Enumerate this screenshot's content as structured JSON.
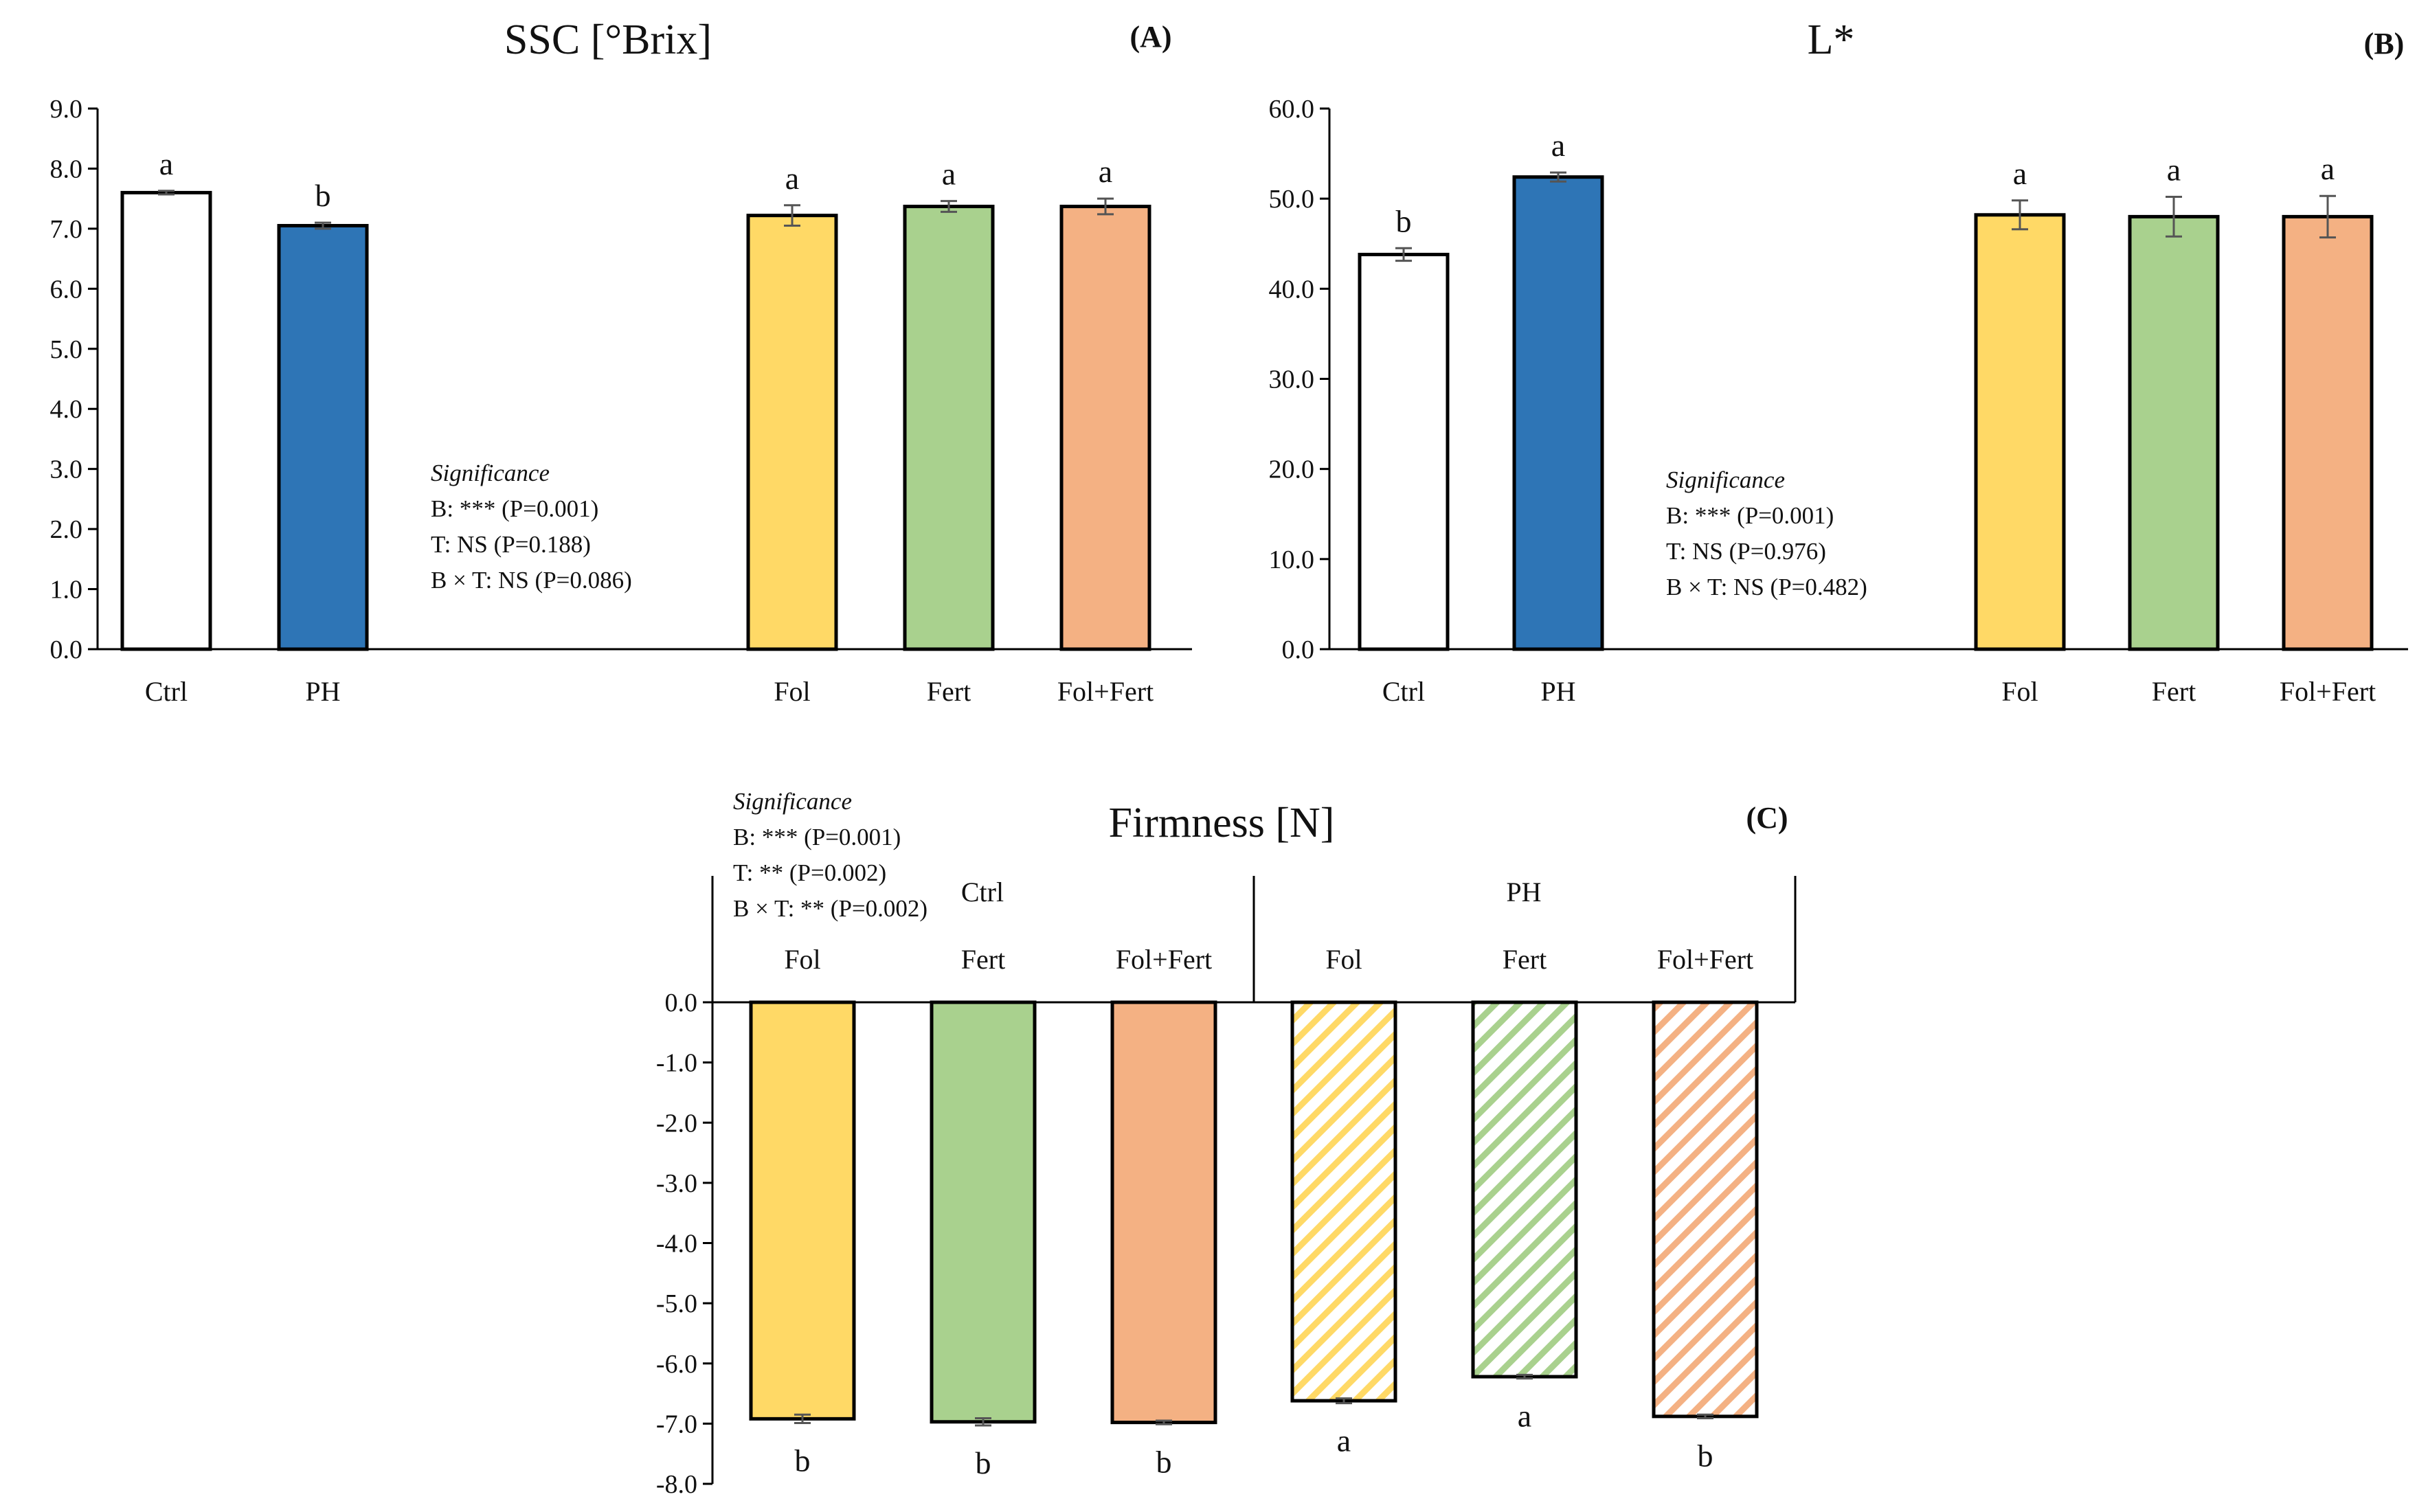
{
  "colors": {
    "ctrl": "#ffffff",
    "ph": "#2e75b6",
    "fol": "#ffd966",
    "fert": "#a9d18e",
    "folfert": "#f4b183",
    "outline": "#000000",
    "errorbar": "#555555"
  },
  "chart_data": [
    {
      "id": "A",
      "type": "bar",
      "title": "SSC [°Brix]",
      "panel_label": "(A)",
      "ylim": [
        0,
        9
      ],
      "yticks": [
        "0.0",
        "1.0",
        "2.0",
        "3.0",
        "4.0",
        "5.0",
        "6.0",
        "7.0",
        "8.0",
        "9.0"
      ],
      "categories": [
        "Ctrl",
        "PH",
        "Fol",
        "Fert",
        "Fol+Fert"
      ],
      "values": [
        7.6,
        7.05,
        7.22,
        7.37,
        7.37
      ],
      "errors": [
        0.03,
        0.05,
        0.17,
        0.09,
        0.13
      ],
      "letters": [
        "a",
        "b",
        "a",
        "a",
        "a"
      ],
      "significance": {
        "title": "Significance",
        "lines": [
          "B: *** (P=0.001)",
          "T: NS (P=0.188)",
          "B × T: NS (P=0.086)"
        ]
      }
    },
    {
      "id": "B",
      "type": "bar",
      "title": "L*",
      "panel_label": "(B)",
      "ylim": [
        0,
        60
      ],
      "yticks": [
        "0.0",
        "10.0",
        "20.0",
        "30.0",
        "40.0",
        "50.0",
        "60.0"
      ],
      "categories": [
        "Ctrl",
        "PH",
        "Fol",
        "Fert",
        "Fol+Fert"
      ],
      "values": [
        43.8,
        52.4,
        48.2,
        48.0,
        48.0
      ],
      "errors": [
        0.7,
        0.5,
        1.6,
        2.2,
        2.3
      ],
      "letters": [
        "b",
        "a",
        "a",
        "a",
        "a"
      ],
      "significance": {
        "title": "Significance",
        "lines": [
          "B: *** (P=0.001)",
          "T: NS (P=0.976)",
          "B × T: NS (P=0.482)"
        ]
      }
    },
    {
      "id": "C",
      "type": "bar",
      "title": "Firmness [N]",
      "panel_label": "(C)",
      "ylim": [
        -8,
        0
      ],
      "yticks": [
        "0.0",
        "-1.0",
        "-2.0",
        "-3.0",
        "-4.0",
        "-5.0",
        "-6.0",
        "-7.0",
        "-8.0"
      ],
      "groups": [
        "Ctrl",
        "PH"
      ],
      "categories": [
        "Fol",
        "Fert",
        "Fol+Fert",
        "Fol",
        "Fert",
        "Fol+Fert"
      ],
      "values": [
        -6.92,
        -6.97,
        -6.98,
        -6.62,
        -6.22,
        -6.88
      ],
      "errors": [
        0.07,
        0.06,
        0.03,
        0.04,
        0.03,
        0.03
      ],
      "letters": [
        "b",
        "b",
        "b",
        "a",
        "a",
        "b"
      ],
      "significance": {
        "title": "Significance",
        "lines": [
          "B: *** (P=0.001)",
          "T: ** (P=0.002)",
          "B × T: ** (P=0.002)"
        ]
      }
    }
  ]
}
